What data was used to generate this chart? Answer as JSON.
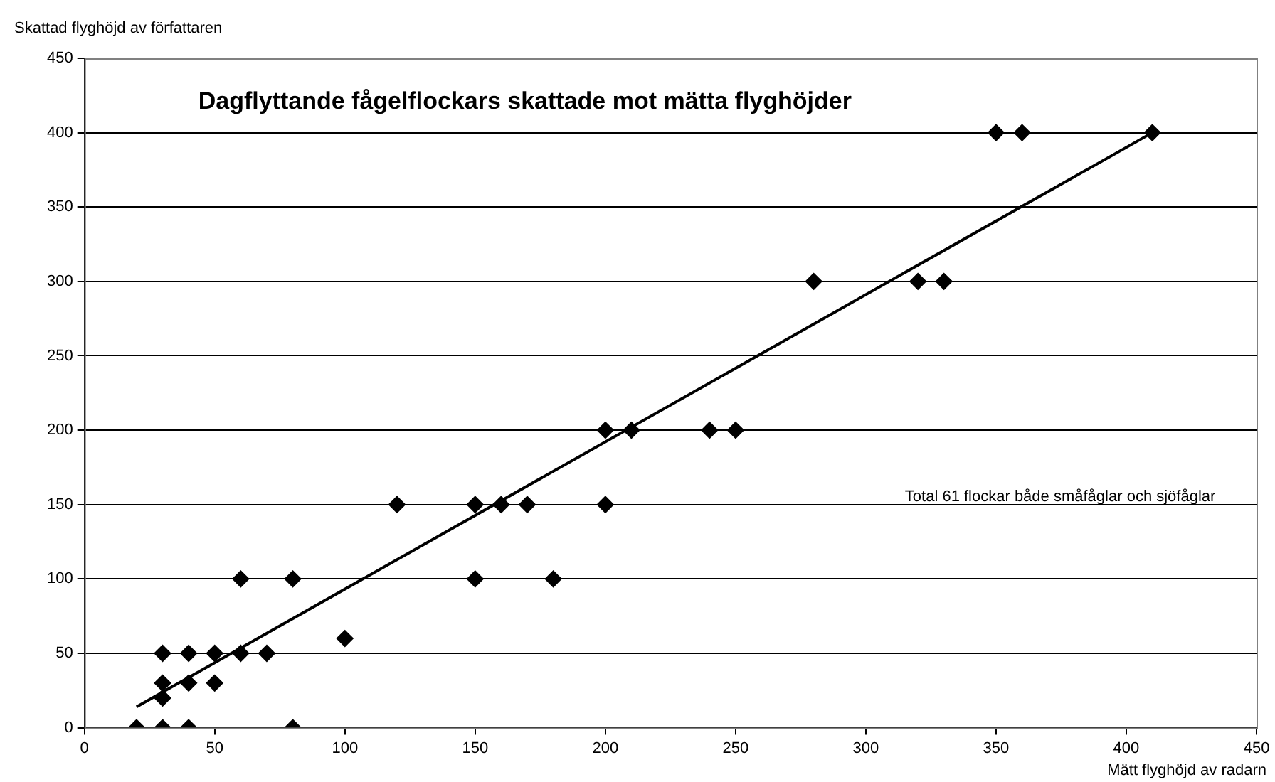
{
  "chart_data": {
    "type": "scatter",
    "title": "Dagflyttande fågelflockars skattade mot mätta flyghöjder",
    "xlabel": "Mätt flyghöjd av radarn",
    "ylabel": "Skattad flyghöjd av författaren",
    "annotations": [
      "Total 61 flockar både småfåglar och sjöfåglar"
    ],
    "series": [
      {
        "color": "#000000",
        "marker": "diamond",
        "x": [
          20,
          30,
          40,
          80,
          30,
          30,
          40,
          50,
          30,
          40,
          50,
          60,
          70,
          100,
          60,
          80,
          150,
          180,
          120,
          150,
          160,
          170,
          200,
          200,
          210,
          240,
          250,
          280,
          320,
          330,
          350,
          360,
          410
        ],
        "values": [
          0,
          0,
          0,
          0,
          20,
          30,
          30,
          30,
          50,
          50,
          50,
          50,
          50,
          60,
          100,
          100,
          100,
          100,
          150,
          150,
          150,
          150,
          150,
          200,
          200,
          200,
          200,
          300,
          300,
          300,
          400,
          400,
          400
        ]
      },
      {
        "type": "line",
        "color": "#000000",
        "marker": "none",
        "line_style": "solid",
        "x": [
          20,
          410
        ],
        "values": [
          14,
          400
        ]
      }
    ],
    "xlim": [
      0,
      450
    ],
    "xticks": [
      0,
      50,
      100,
      150,
      200,
      250,
      300,
      350,
      400,
      450
    ],
    "ylim": [
      0,
      450
    ],
    "yticks": [
      0,
      50,
      100,
      150,
      200,
      250,
      300,
      350,
      400,
      450
    ],
    "grid": "y",
    "legend": false
  }
}
